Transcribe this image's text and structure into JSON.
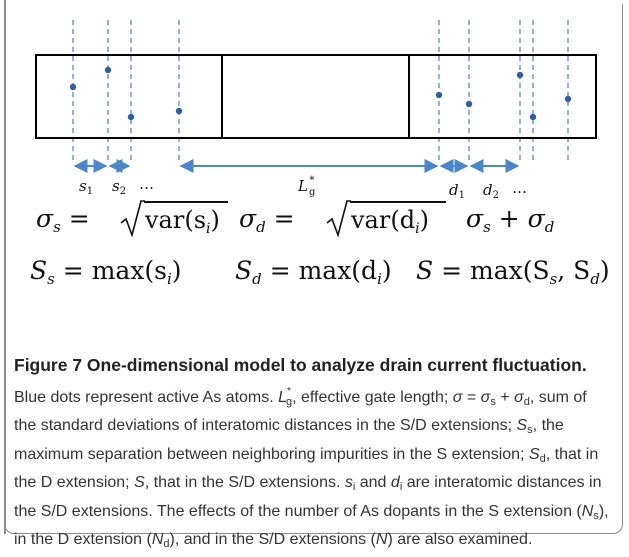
{
  "diagram": {
    "labels": {
      "s1": "s",
      "s1_sub": "1",
      "s2": "s",
      "s2_sub": "2",
      "dots_left": "…",
      "lg": "L",
      "lg_sub": "g",
      "lg_sup": "*",
      "d1": "d",
      "d1_sub": "1",
      "d2": "d",
      "d2_sub": "2",
      "dots_right": "…"
    },
    "colors": {
      "dash": "#4a7fc1",
      "dot": "#2f5f9e",
      "arrow": "#4a86c8",
      "box": "#000000"
    }
  },
  "equations": {
    "row1": {
      "sigma_s_lhs": "σ",
      "sigma_s_sub": "s",
      "eq1": "=",
      "var_s": "var(s",
      "var_s_sub": "i",
      "var_s_close": ")",
      "sigma_d_lhs": "σ",
      "sigma_d_sub": "d",
      "eq2": "=",
      "var_d": "var(d",
      "var_d_sub": "i",
      "var_d_close": ")",
      "sum_a": "σ",
      "sum_a_sub": "s",
      "plus": "+",
      "sum_b": "σ",
      "sum_b_sub": "d"
    },
    "row2": {
      "Ss": "S",
      "Ss_sub": "s",
      "eq1": "= max(s",
      "Ss_i": "i",
      "close1": ")",
      "Sd": "S",
      "Sd_sub": "d",
      "eq2": "= max(d",
      "Sd_i": "i",
      "close2": ")",
      "S": "S",
      "eq3": "= max(S",
      "S_a_sub": "s",
      "comma": ", S",
      "S_b_sub": "d",
      "close3": ")"
    }
  },
  "caption": {
    "title": "Figure 7 One-dimensional model to analyze drain current fluctuation.",
    "p1": " Blue dots represent active As atoms. ",
    "lg": "L",
    "lg_sub": "g",
    "lg_sup": "*",
    "p2": ", effective gate length; ",
    "sigma": "σ",
    "p3": " = ",
    "sigma_s": "σ",
    "sigma_s_sub": "s",
    "p4": " + ",
    "sigma_d": "σ",
    "sigma_d_sub": "d",
    "p5": ", sum of the standard deviations of interatomic distances in the S/D extensions; ",
    "Ss": "S",
    "Ss_sub": "s",
    "p6": ", the maximum separation between neighboring impurities in the S extension; ",
    "Sd": "S",
    "Sd_sub": "d",
    "p7": ", that in the D extension; ",
    "S": "S",
    "p8": ", that in the S/D extensions. ",
    "si": "s",
    "si_sub": "i",
    "p9": " and ",
    "di": "d",
    "di_sub": "i",
    "p10": " are interatomic distances in the S/D extensions. The effects of the number of As dopants in the S extension (",
    "Ns": "N",
    "Ns_sub": "s",
    "p11": "), in the D extension (",
    "Nd": "N",
    "Nd_sub": "d",
    "p12": "), and in the S/D extensions (",
    "N": "N",
    "p13": ") are also examined."
  }
}
